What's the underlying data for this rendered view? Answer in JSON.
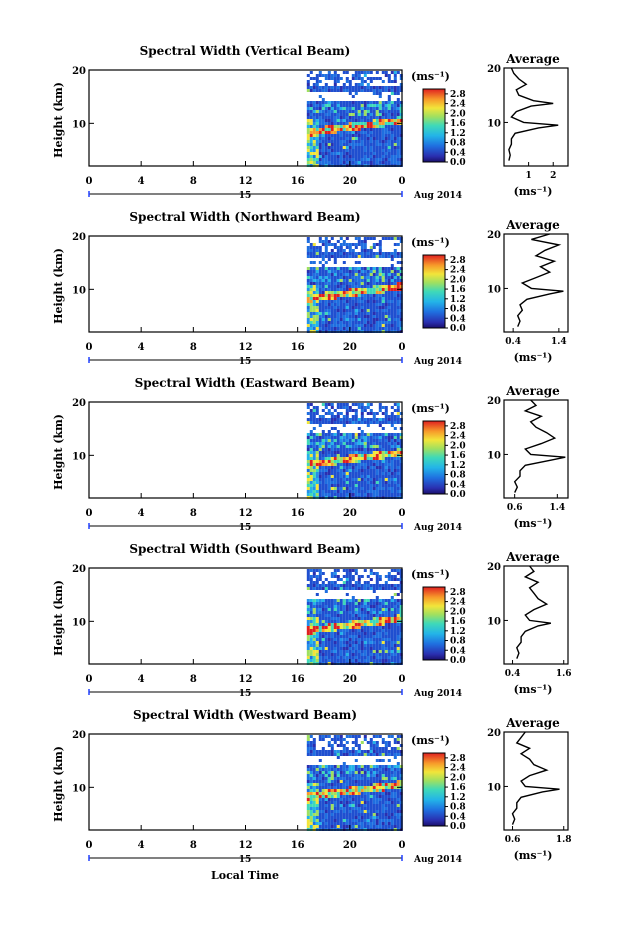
{
  "figure": {
    "xlabel": "Local Time",
    "ylabel": "Height (km)",
    "date_label": "Aug 2014",
    "unit_label": "(ms⁻¹)",
    "average_title": "Average"
  },
  "chart_data": [
    {
      "type": "heatmap",
      "title": "Spectral Width (Vertical Beam)",
      "xlabel": "",
      "ylabel": "Height (km)",
      "x_ticks": [
        "0",
        "4",
        "8",
        "12",
        "16",
        "20",
        "0"
      ],
      "xlim": [
        0,
        24
      ],
      "ylim": [
        2,
        20
      ],
      "y_ticks": [
        "10",
        "20"
      ],
      "day_label": "15",
      "data_start_hour": 16.7,
      "colorbar": {
        "label": "(ms⁻¹)",
        "range": [
          0.0,
          3.0
        ],
        "ticks": [
          "0.0",
          "0.4",
          "0.8",
          "1.2",
          "1.6",
          "2.0",
          "2.4",
          "2.8"
        ]
      },
      "average_profile": {
        "title": "Average",
        "xlabel": "(ms⁻¹)",
        "xlim": [
          0,
          2.6
        ],
        "x_ticks": [
          "1",
          "2"
        ],
        "heights": [
          3,
          4,
          5,
          6,
          7,
          8,
          9,
          9.5,
          10,
          11,
          12,
          13,
          13.5,
          14,
          15,
          16,
          17,
          18,
          19,
          20
        ],
        "values": [
          0.2,
          0.25,
          0.2,
          0.3,
          0.3,
          0.45,
          1.4,
          2.2,
          0.8,
          0.3,
          0.5,
          1.1,
          2.0,
          1.2,
          0.6,
          0.5,
          0.9,
          0.6,
          0.4,
          0.3
        ]
      }
    },
    {
      "type": "heatmap",
      "title": "Spectral Width (Northward Beam)",
      "xlabel": "",
      "ylabel": "Height (km)",
      "x_ticks": [
        "0",
        "4",
        "8",
        "12",
        "16",
        "20",
        "0"
      ],
      "xlim": [
        0,
        24
      ],
      "ylim": [
        2,
        20
      ],
      "y_ticks": [
        "10",
        "20"
      ],
      "day_label": "15",
      "data_start_hour": 16.7,
      "colorbar": {
        "label": "(ms⁻¹)",
        "range": [
          0.0,
          3.0
        ],
        "ticks": [
          "0.0",
          "0.4",
          "0.8",
          "1.2",
          "1.6",
          "2.0",
          "2.4",
          "2.8"
        ]
      },
      "average_profile": {
        "title": "Average",
        "xlabel": "(ms⁻¹)",
        "xlim": [
          0.2,
          1.6
        ],
        "x_ticks": [
          "0.4",
          "1.4"
        ],
        "heights": [
          3,
          4,
          5,
          6,
          7,
          8,
          9,
          9.5,
          10,
          11,
          12,
          13,
          14,
          15,
          16,
          17,
          18,
          19,
          20
        ],
        "values": [
          0.5,
          0.55,
          0.5,
          0.6,
          0.55,
          0.7,
          1.2,
          1.5,
          0.8,
          0.6,
          0.9,
          1.2,
          1.0,
          1.3,
          0.9,
          1.1,
          1.4,
          0.8,
          1.2
        ]
      }
    },
    {
      "type": "heatmap",
      "title": "Spectral Width (Eastward Beam)",
      "xlabel": "",
      "ylabel": "Height (km)",
      "x_ticks": [
        "0",
        "4",
        "8",
        "12",
        "16",
        "20",
        "0"
      ],
      "xlim": [
        0,
        24
      ],
      "ylim": [
        2,
        20
      ],
      "y_ticks": [
        "10",
        "20"
      ],
      "day_label": "15",
      "data_start_hour": 16.7,
      "colorbar": {
        "label": "(ms⁻¹)",
        "range": [
          0.0,
          3.0
        ],
        "ticks": [
          "0.0",
          "0.4",
          "0.8",
          "1.2",
          "1.6",
          "2.0",
          "2.4",
          "2.8"
        ]
      },
      "average_profile": {
        "title": "Average",
        "xlabel": "(ms⁻¹)",
        "xlim": [
          0.4,
          1.6
        ],
        "x_ticks": [
          "0.6",
          "1.4"
        ],
        "heights": [
          3,
          4,
          5,
          6,
          7,
          8,
          9,
          9.5,
          10,
          11,
          12,
          13,
          14,
          15,
          16,
          17,
          18,
          19,
          20
        ],
        "values": [
          0.6,
          0.65,
          0.6,
          0.7,
          0.7,
          0.8,
          1.3,
          1.55,
          0.9,
          0.8,
          1.1,
          1.35,
          1.2,
          1.0,
          0.9,
          1.1,
          0.8,
          1.0,
          0.9
        ]
      }
    },
    {
      "type": "heatmap",
      "title": "Spectral Width (Southward Beam)",
      "xlabel": "",
      "ylabel": "Height (km)",
      "x_ticks": [
        "0",
        "4",
        "8",
        "12",
        "16",
        "20",
        "0"
      ],
      "xlim": [
        0,
        24
      ],
      "ylim": [
        2,
        20
      ],
      "y_ticks": [
        "10",
        "20"
      ],
      "day_label": "15",
      "data_start_hour": 16.7,
      "colorbar": {
        "label": "(ms⁻¹)",
        "range": [
          0.0,
          3.0
        ],
        "ticks": [
          "0.0",
          "0.4",
          "0.8",
          "1.2",
          "1.6",
          "2.0",
          "2.4",
          "2.8"
        ]
      },
      "average_profile": {
        "title": "Average",
        "xlabel": "(ms⁻¹)",
        "xlim": [
          0.2,
          1.7
        ],
        "x_ticks": [
          "0.4",
          "1.6"
        ],
        "heights": [
          3,
          4,
          5,
          6,
          7,
          8,
          9,
          9.5,
          10,
          11,
          12,
          13,
          14,
          15,
          16,
          17,
          18,
          19,
          20
        ],
        "values": [
          0.5,
          0.55,
          0.5,
          0.6,
          0.6,
          0.7,
          1.0,
          1.3,
          0.8,
          0.7,
          0.9,
          1.2,
          1.0,
          0.9,
          0.8,
          1.0,
          0.7,
          0.9,
          0.8
        ]
      }
    },
    {
      "type": "heatmap",
      "title": "Spectral Width (Westward Beam)",
      "xlabel": "Local Time",
      "ylabel": "Height (km)",
      "x_ticks": [
        "0",
        "4",
        "8",
        "12",
        "16",
        "20",
        "0"
      ],
      "xlim": [
        0,
        24
      ],
      "ylim": [
        2,
        20
      ],
      "y_ticks": [
        "10",
        "20"
      ],
      "day_label": "15",
      "data_start_hour": 16.7,
      "colorbar": {
        "label": "(ms⁻¹)",
        "range": [
          0.0,
          3.0
        ],
        "ticks": [
          "0.0",
          "0.4",
          "0.8",
          "1.2",
          "1.6",
          "2.0",
          "2.4",
          "2.8"
        ]
      },
      "average_profile": {
        "title": "Average",
        "xlabel": "(ms⁻¹)",
        "xlim": [
          0.4,
          1.9
        ],
        "x_ticks": [
          "0.6",
          "1.8"
        ],
        "heights": [
          3,
          4,
          5,
          6,
          7,
          8,
          9,
          9.5,
          10,
          11,
          12,
          13,
          14,
          15,
          16,
          17,
          18,
          19,
          20
        ],
        "values": [
          0.6,
          0.65,
          0.6,
          0.7,
          0.7,
          0.8,
          1.3,
          1.7,
          0.9,
          0.8,
          1.0,
          1.4,
          1.1,
          1.0,
          0.8,
          1.0,
          0.7,
          0.8,
          0.9
        ]
      }
    }
  ]
}
